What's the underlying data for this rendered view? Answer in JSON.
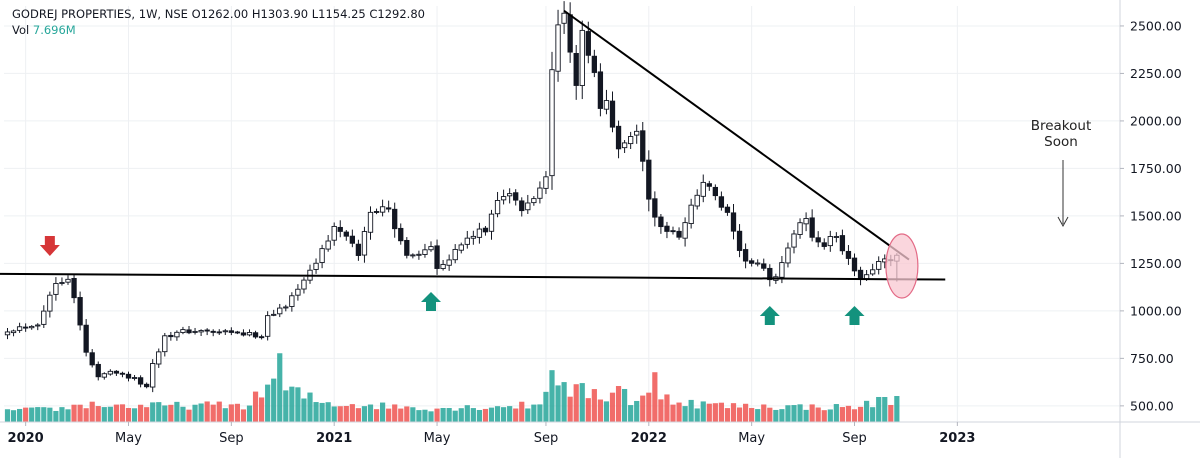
{
  "header": {
    "symbol_line": "GODREJ PROPERTIES, 1W, NSE",
    "open_label": "O",
    "open": "1262.00",
    "high_label": "H",
    "high": "1303.90",
    "low_label": "L",
    "low": "1154.25",
    "close_label": "C",
    "close": "1292.80",
    "volume_label": "Vol",
    "volume": "7.696M"
  },
  "chart_data": {
    "type": "candlestick",
    "title": "",
    "xlabel": "",
    "ylabel": "",
    "y_ticks": [
      500,
      750,
      1000,
      1250,
      1500,
      1750,
      2000,
      2250,
      2500
    ],
    "y_tick_labels": [
      "500.00",
      "750.00",
      "1000.00",
      "1250.00",
      "1500.00",
      "1750.00",
      "2000.00",
      "2250.00",
      "2500.00"
    ],
    "ylim": [
      415,
      2605
    ],
    "x_ticks": [
      {
        "label": "2020",
        "week": 3,
        "year": true
      },
      {
        "label": "May",
        "week": 20,
        "year": false
      },
      {
        "label": "Sep",
        "week": 37,
        "year": false
      },
      {
        "label": "2021",
        "week": 54,
        "year": true
      },
      {
        "label": "May",
        "week": 71,
        "year": false
      },
      {
        "label": "Sep",
        "week": 89,
        "year": false
      },
      {
        "label": "2022",
        "week": 106,
        "year": true
      },
      {
        "label": "May",
        "week": 123,
        "year": false
      },
      {
        "label": "Sep",
        "week": 140,
        "year": false
      },
      {
        "label": "2023",
        "week": 157,
        "year": true
      }
    ],
    "keypoints_close": [
      [
        0,
        900
      ],
      [
        5,
        935
      ],
      [
        8,
        1150
      ],
      [
        10,
        1180
      ],
      [
        11,
        1080
      ],
      [
        12,
        920
      ],
      [
        13,
        780
      ],
      [
        15,
        650
      ],
      [
        17,
        690
      ],
      [
        21,
        640
      ],
      [
        23,
        600
      ],
      [
        24,
        720
      ],
      [
        26,
        870
      ],
      [
        30,
        895
      ],
      [
        38,
        880
      ],
      [
        42,
        870
      ],
      [
        43,
        980
      ],
      [
        46,
        1020
      ],
      [
        48,
        1130
      ],
      [
        50,
        1200
      ],
      [
        52,
        1320
      ],
      [
        54,
        1440
      ],
      [
        56,
        1380
      ],
      [
        58,
        1300
      ],
      [
        60,
        1520
      ],
      [
        62,
        1560
      ],
      [
        63,
        1520
      ],
      [
        64,
        1420
      ],
      [
        66,
        1310
      ],
      [
        68,
        1300
      ],
      [
        70,
        1350
      ],
      [
        71,
        1240
      ],
      [
        73,
        1280
      ],
      [
        75,
        1350
      ],
      [
        77,
        1400
      ],
      [
        79,
        1420
      ],
      [
        81,
        1600
      ],
      [
        83,
        1620
      ],
      [
        85,
        1520
      ],
      [
        87,
        1600
      ],
      [
        89,
        1700
      ],
      [
        90,
        2300
      ],
      [
        91,
        2500
      ],
      [
        92,
        2550
      ],
      [
        93,
        2380
      ],
      [
        94,
        2200
      ],
      [
        95,
        2450
      ],
      [
        97,
        2250
      ],
      [
        98,
        2050
      ],
      [
        99,
        2100
      ],
      [
        101,
        1850
      ],
      [
        102,
        1900
      ],
      [
        104,
        1950
      ],
      [
        106,
        1600
      ],
      [
        107,
        1480
      ],
      [
        109,
        1420
      ],
      [
        111,
        1400
      ],
      [
        113,
        1550
      ],
      [
        115,
        1680
      ],
      [
        117,
        1600
      ],
      [
        119,
        1500
      ],
      [
        121,
        1300
      ],
      [
        123,
        1250
      ],
      [
        125,
        1220
      ],
      [
        126,
        1150
      ],
      [
        127,
        1190
      ],
      [
        129,
        1330
      ],
      [
        131,
        1450
      ],
      [
        132,
        1500
      ],
      [
        133,
        1380
      ],
      [
        135,
        1350
      ],
      [
        137,
        1400
      ],
      [
        138,
        1300
      ],
      [
        140,
        1220
      ],
      [
        141,
        1180
      ],
      [
        142,
        1200
      ],
      [
        144,
        1250
      ],
      [
        146,
        1270
      ],
      [
        147,
        1292.8
      ]
    ],
    "volume_keypoints": [
      [
        0,
        0.25
      ],
      [
        10,
        0.35
      ],
      [
        12,
        0.55
      ],
      [
        20,
        0.45
      ],
      [
        40,
        0.5
      ],
      [
        44,
        1.7
      ],
      [
        45,
        2.3
      ],
      [
        46,
        1.2
      ],
      [
        50,
        0.8
      ],
      [
        52,
        0.6
      ],
      [
        70,
        0.35
      ],
      [
        88,
        0.5
      ],
      [
        90,
        2.4
      ],
      [
        91,
        2.0
      ],
      [
        92,
        1.2
      ],
      [
        100,
        0.9
      ],
      [
        101,
        1.9
      ],
      [
        103,
        0.6
      ],
      [
        106,
        0.9
      ],
      [
        107,
        1.6
      ],
      [
        108,
        1.05
      ],
      [
        112,
        0.6
      ],
      [
        120,
        0.45
      ],
      [
        140,
        0.4
      ],
      [
        147,
        0.85
      ]
    ],
    "trendlines": [
      {
        "name": "resistance",
        "points": [
          [
            -2,
            1195
          ],
          [
            155,
            1165
          ]
        ]
      },
      {
        "name": "downtrend",
        "points": [
          [
            92,
            2580
          ],
          [
            149,
            1270
          ]
        ]
      }
    ],
    "annotations": {
      "breakout_text": [
        "Breakout",
        "Soon"
      ],
      "red_arrow_week": 7,
      "green_arrow_weeks": [
        70,
        126,
        140
      ],
      "circle_week": 148
    },
    "colors": {
      "up": "#ffffff",
      "down": "#131722",
      "volume_up": "#26a69a",
      "volume_down": "#ef5350",
      "red_arrow": "#d63638",
      "green_arrow": "#13927d",
      "circle_fill": "#f8c8d2",
      "circle_stroke": "#e36a86",
      "grid": "#eef0f3"
    },
    "grid": true,
    "scale_position": "right"
  }
}
